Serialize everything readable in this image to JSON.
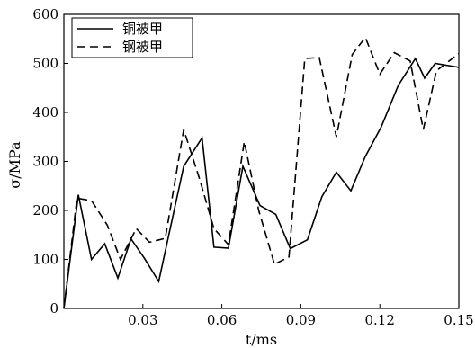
{
  "chart_data": {
    "type": "line",
    "xlabel": "t/ms",
    "ylabel": "σ/MPa",
    "xlim": [
      0,
      0.15
    ],
    "ylim": [
      0,
      600
    ],
    "x_ticks": [
      "0.03",
      "0.06",
      "0.09",
      "0.12",
      "0.15"
    ],
    "y_ticks": [
      "0",
      "100",
      "200",
      "300",
      "400",
      "500",
      "600"
    ],
    "legend_position": "top-left",
    "grid": false,
    "series": [
      {
        "name": "铜被甲",
        "style": "solid",
        "x": [
          0,
          0.0055,
          0.0105,
          0.0155,
          0.0205,
          0.0255,
          0.0305,
          0.036,
          0.0455,
          0.0525,
          0.057,
          0.0625,
          0.068,
          0.0745,
          0.0805,
          0.086,
          0.0925,
          0.098,
          0.1035,
          0.109,
          0.1145,
          0.1205,
          0.127,
          0.1335,
          0.137,
          0.141,
          0.15
        ],
        "y": [
          0,
          232,
          100,
          132,
          62,
          142,
          103,
          55,
          290,
          348,
          125,
          123,
          290,
          210,
          192,
          122,
          140,
          228,
          278,
          240,
          310,
          370,
          455,
          510,
          470,
          500,
          492
        ]
      },
      {
        "name": "钢被甲",
        "style": "dashed",
        "x": [
          0,
          0.005,
          0.0105,
          0.0165,
          0.0215,
          0.0275,
          0.0325,
          0.0385,
          0.0455,
          0.0515,
          0.057,
          0.0625,
          0.0685,
          0.074,
          0.08,
          0.0855,
          0.0915,
          0.097,
          0.1035,
          0.1095,
          0.1145,
          0.12,
          0.1255,
          0.1315,
          0.1365,
          0.1415,
          0.15
        ],
        "y": [
          0,
          225,
          220,
          170,
          100,
          163,
          135,
          143,
          365,
          265,
          163,
          130,
          340,
          200,
          90,
          105,
          510,
          512,
          350,
          518,
          553,
          478,
          522,
          505,
          365,
          485,
          520
        ]
      }
    ]
  }
}
